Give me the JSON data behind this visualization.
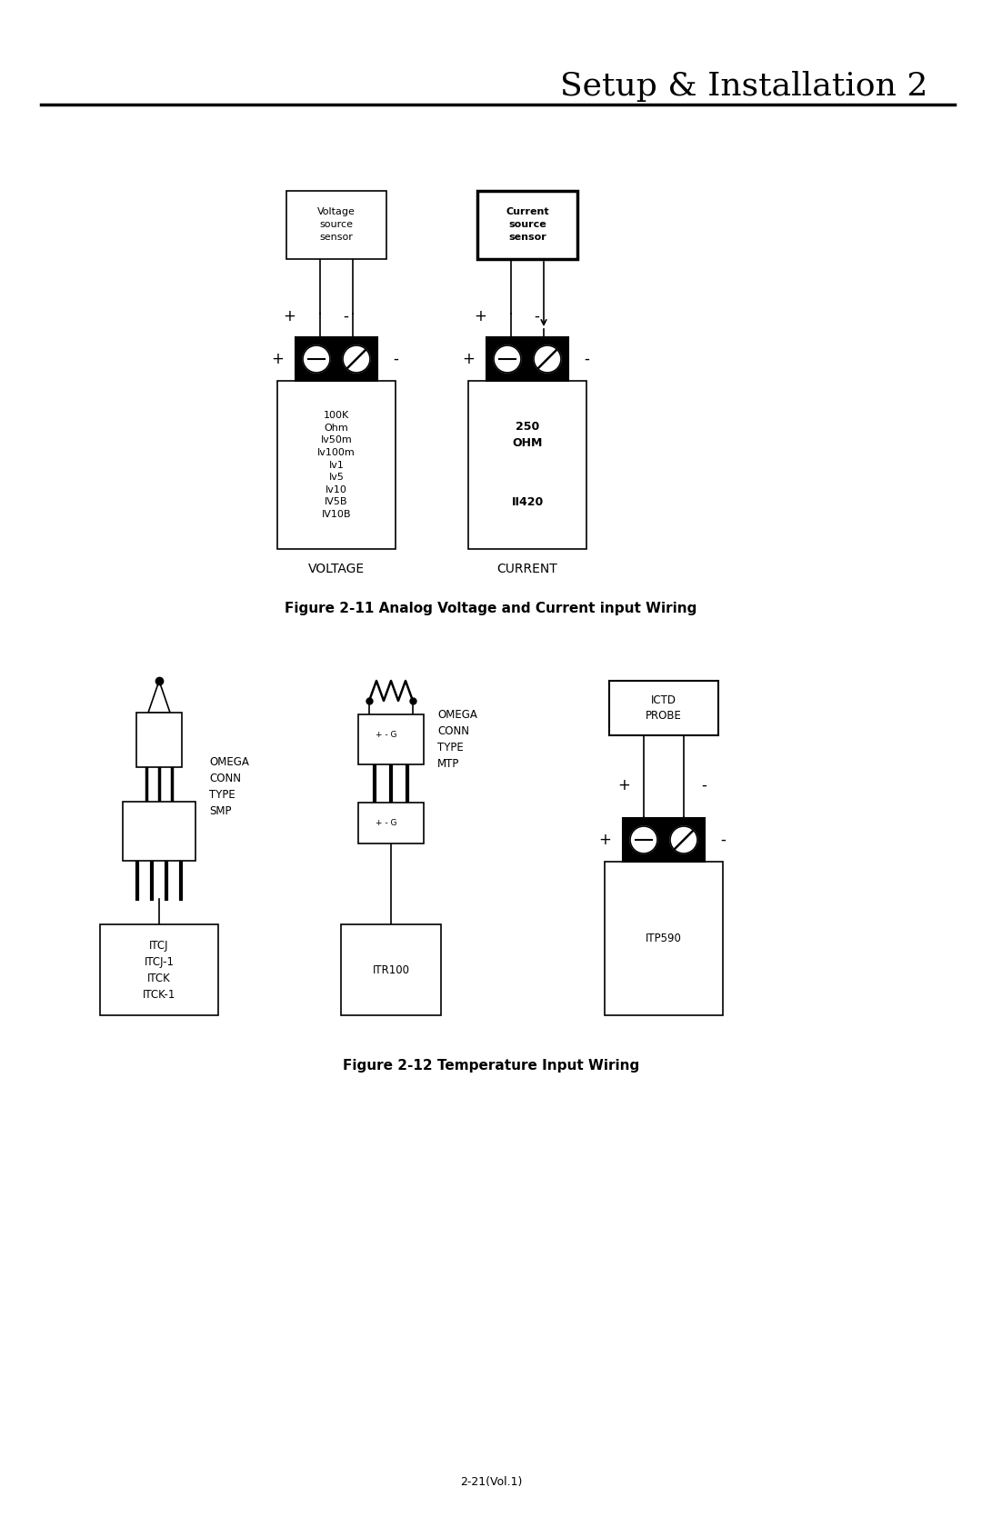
{
  "title": "Setup & Installation 2",
  "fig11_title": "Figure 2-11 Analog Voltage and Current input Wiring",
  "fig12_title": "Figure 2-12 Temperature Input Wiring",
  "footer": "2-21(Vol.1)",
  "bg_color": "#ffffff",
  "line_color": "#000000",
  "voltage_sensor_label": "Voltage\nsource\nsensor",
  "current_sensor_label": "Current\nsource\nsensor",
  "voltage_box_text": "100K\nOhm\nIv50m\nIv100m\nIv1\nIv5\nIv10\nIV5B\nIV10B",
  "current_box_top_text": "250\nOHM",
  "current_box_bot_text": "II420",
  "voltage_label": "VOLTAGE",
  "current_label": "CURRENT",
  "omega_smp_label": "OMEGA\nCONN\nTYPE\nSMP",
  "itcj_label": "ITCJ\nITCJ-1\nITCK\nITCK-1",
  "omega_mtp_label": "OMEGA\nCONN\nTYPE\nMTP",
  "itr100_label": "ITR100",
  "ictd_label": "ICTD\nPROBE",
  "itp590_label": "ITP590"
}
